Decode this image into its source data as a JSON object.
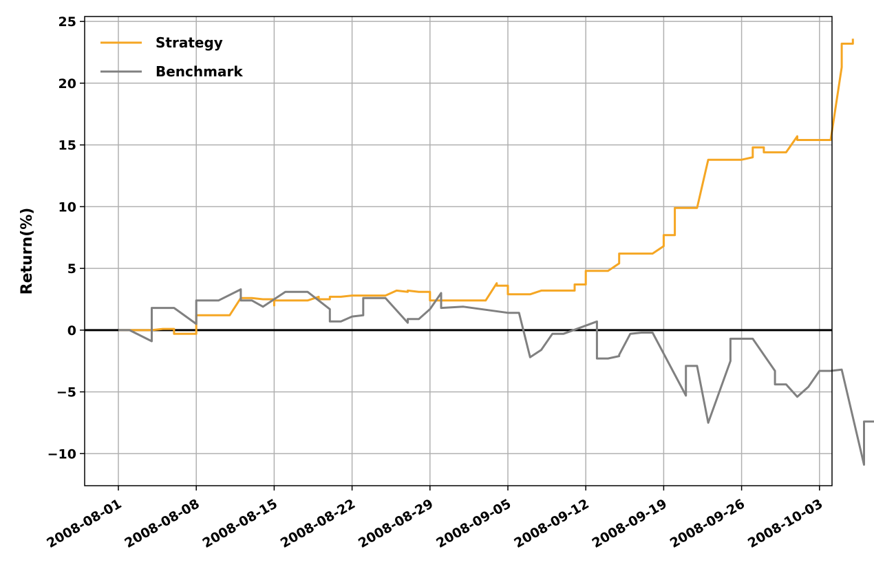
{
  "chart_data": {
    "type": "line",
    "title": "",
    "xlabel": "",
    "ylabel": "Return(%)",
    "x_axis_type": "date",
    "xlim": [
      "2007-07-29",
      "2008-10-04"
    ],
    "ylim": [
      -12.6,
      25.4
    ],
    "x_ticks": [
      "2008-08-01",
      "2008-08-08",
      "2008-08-15",
      "2008-08-22",
      "2008-08-29",
      "2008-09-05",
      "2008-09-12",
      "2008-09-19",
      "2008-09-26",
      "2008-10-03"
    ],
    "y_ticks": [
      25,
      20,
      15,
      10,
      5,
      0,
      -5,
      -10
    ],
    "grid": true,
    "zero_line": true,
    "legend_position": "top-left",
    "series": [
      {
        "name": "Strategy",
        "color": "#f5a623",
        "points": [
          [
            "2008-08-01",
            0.0
          ],
          [
            "2008-08-04",
            0.0
          ],
          [
            "2008-08-05",
            0.1
          ],
          [
            "2008-08-06",
            0.1
          ],
          [
            "2008-08-06",
            -0.3
          ],
          [
            "2008-08-07",
            -0.3
          ],
          [
            "2008-08-08",
            -0.3
          ],
          [
            "2008-08-08",
            1.2
          ],
          [
            "2008-08-11",
            1.2
          ],
          [
            "2008-08-12",
            2.6
          ],
          [
            "2008-08-13",
            2.6
          ],
          [
            "2008-08-14",
            2.5
          ],
          [
            "2008-08-15",
            2.5
          ],
          [
            "2008-08-15",
            2.0
          ],
          [
            "2008-08-15",
            2.4
          ],
          [
            "2008-08-18",
            2.4
          ],
          [
            "2008-08-19",
            2.7
          ],
          [
            "2008-08-19",
            2.5
          ],
          [
            "2008-08-20",
            2.5
          ],
          [
            "2008-08-20",
            2.7
          ],
          [
            "2008-08-21",
            2.7
          ],
          [
            "2008-08-22",
            2.8
          ],
          [
            "2008-08-25",
            2.8
          ],
          [
            "2008-08-26",
            3.2
          ],
          [
            "2008-08-27",
            3.1
          ],
          [
            "2008-08-27",
            3.2
          ],
          [
            "2008-08-28",
            3.1
          ],
          [
            "2008-08-29",
            3.1
          ],
          [
            "2008-08-29",
            2.4
          ],
          [
            "2008-09-03",
            2.4
          ],
          [
            "2008-09-04",
            3.8
          ],
          [
            "2008-09-04",
            3.6
          ],
          [
            "2008-09-05",
            3.6
          ],
          [
            "2008-09-05",
            2.9
          ],
          [
            "2008-09-07",
            2.9
          ],
          [
            "2008-09-08",
            3.2
          ],
          [
            "2008-09-10",
            3.2
          ],
          [
            "2008-09-11",
            3.2
          ],
          [
            "2008-09-11",
            3.7
          ],
          [
            "2008-09-11",
            3.7
          ],
          [
            "2008-09-12",
            3.7
          ],
          [
            "2008-09-12",
            4.8
          ],
          [
            "2008-09-14",
            4.8
          ],
          [
            "2008-09-15",
            5.4
          ],
          [
            "2008-09-15",
            6.2
          ],
          [
            "2008-09-18",
            6.2
          ],
          [
            "2008-09-19",
            6.8
          ],
          [
            "2008-09-19",
            7.7
          ],
          [
            "2008-09-20",
            7.7
          ],
          [
            "2008-09-20",
            9.9
          ],
          [
            "2008-09-22",
            9.9
          ],
          [
            "2008-09-23",
            13.8
          ],
          [
            "2008-09-26",
            13.8
          ],
          [
            "2008-09-27",
            14.0
          ],
          [
            "2008-09-27",
            14.8
          ],
          [
            "2008-09-28",
            14.8
          ],
          [
            "2008-09-28",
            14.4
          ],
          [
            "2008-09-30",
            14.4
          ],
          [
            "2008-10-01",
            15.7
          ],
          [
            "2008-10-01",
            15.4
          ],
          [
            "2008-10-04",
            15.4
          ],
          [
            "2008-10-05",
            21.3
          ],
          [
            "2008-10-05",
            23.2
          ],
          [
            "2008-10-06",
            23.2
          ],
          [
            "2008-10-06",
            23.6
          ]
        ]
      },
      {
        "name": "Benchmark",
        "color": "#808080",
        "points": [
          [
            "2008-08-01",
            0.0
          ],
          [
            "2008-08-02",
            0.0
          ],
          [
            "2008-08-04",
            -0.9
          ],
          [
            "2008-08-04",
            1.8
          ],
          [
            "2008-08-06",
            1.8
          ],
          [
            "2008-08-08",
            0.5
          ],
          [
            "2008-08-08",
            2.4
          ],
          [
            "2008-08-09",
            2.4
          ],
          [
            "2008-08-10",
            2.4
          ],
          [
            "2008-08-12",
            3.3
          ],
          [
            "2008-08-12",
            2.4
          ],
          [
            "2008-08-13",
            2.4
          ],
          [
            "2008-08-14",
            1.9
          ],
          [
            "2008-08-16",
            3.1
          ],
          [
            "2008-08-18",
            3.1
          ],
          [
            "2008-08-20",
            1.7
          ],
          [
            "2008-08-20",
            0.7
          ],
          [
            "2008-08-21",
            0.7
          ],
          [
            "2008-08-22",
            1.1
          ],
          [
            "2008-08-23",
            1.2
          ],
          [
            "2008-08-23",
            2.6
          ],
          [
            "2008-08-25",
            2.6
          ],
          [
            "2008-08-27",
            0.6
          ],
          [
            "2008-08-27",
            0.9
          ],
          [
            "2008-08-28",
            0.9
          ],
          [
            "2008-08-29",
            1.7
          ],
          [
            "2008-08-30",
            3.0
          ],
          [
            "2008-08-30",
            1.8
          ],
          [
            "2008-09-01",
            1.9
          ],
          [
            "2008-09-05",
            1.4
          ],
          [
            "2008-09-06",
            1.4
          ],
          [
            "2008-09-07",
            -2.2
          ],
          [
            "2008-09-08",
            -1.6
          ],
          [
            "2008-09-09",
            -0.3
          ],
          [
            "2008-09-10",
            -0.3
          ],
          [
            "2008-09-13",
            0.7
          ],
          [
            "2008-09-13",
            -2.3
          ],
          [
            "2008-09-14",
            -2.3
          ],
          [
            "2008-09-15",
            -2.1
          ],
          [
            "2008-09-15",
            -2.0
          ],
          [
            "2008-09-16",
            -0.3
          ],
          [
            "2008-09-17",
            -0.2
          ],
          [
            "2008-09-18",
            -0.2
          ],
          [
            "2008-09-21",
            -5.3
          ],
          [
            "2008-09-21",
            -2.9
          ],
          [
            "2008-09-22",
            -2.9
          ],
          [
            "2008-09-23",
            -7.5
          ],
          [
            "2008-09-23",
            -7.5
          ],
          [
            "2008-09-25",
            -2.5
          ],
          [
            "2008-09-25",
            -0.7
          ],
          [
            "2008-09-27",
            -0.7
          ],
          [
            "2008-09-29",
            -3.3
          ],
          [
            "2008-09-29",
            -4.4
          ],
          [
            "2008-09-30",
            -4.4
          ],
          [
            "2008-10-01",
            -5.4
          ],
          [
            "2008-10-02",
            -4.6
          ],
          [
            "2008-10-03",
            -3.3
          ],
          [
            "2008-10-04",
            -3.3
          ],
          [
            "2008-10-05",
            -3.2
          ],
          [
            "2008-10-07",
            -10.9
          ],
          [
            "2008-10-07",
            -7.4
          ],
          [
            "2008-10-08",
            -7.4
          ],
          [
            "2008-10-09",
            -7.2
          ],
          [
            "2008-10-09",
            -7.1
          ]
        ]
      }
    ]
  }
}
